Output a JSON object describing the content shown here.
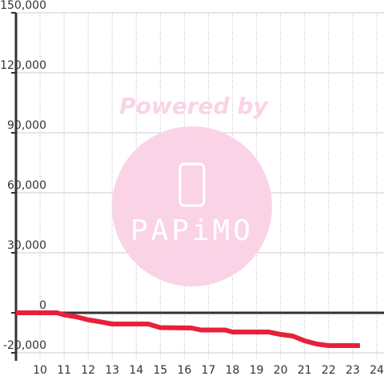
{
  "chart_data": {
    "type": "line",
    "annotations": [
      "Powered by",
      "PAPiMO"
    ],
    "x": [
      9.0,
      10.7,
      11.0,
      11.5,
      12.0,
      12.5,
      13.0,
      14.5,
      15.0,
      16.3,
      16.7,
      17.7,
      18.0,
      19.5,
      20.0,
      20.5,
      21.0,
      21.5,
      22.0,
      23.3
    ],
    "values": [
      0,
      0,
      -1000,
      -2000,
      -3500,
      -4500,
      -5600,
      -5600,
      -7400,
      -7600,
      -8600,
      -8600,
      -9600,
      -9600,
      -10800,
      -11600,
      -14000,
      -15600,
      -16400,
      -16400
    ],
    "color": "#e8203a",
    "xlim": [
      9,
      24.3
    ],
    "xticks": [
      10,
      11,
      12,
      13,
      14,
      15,
      16,
      17,
      18,
      19,
      20,
      21,
      22,
      23,
      24
    ],
    "ylim": [
      -24000,
      150000
    ],
    "yticks": [
      {
        "value": -20000,
        "label": "-20,000"
      },
      0,
      {
        "value": 30000,
        "label": "30,000"
      },
      {
        "value": 60000,
        "label": "60,000"
      },
      {
        "value": 90000,
        "label": "90,000"
      },
      {
        "value": 120000,
        "label": "120,000"
      },
      {
        "value": 150000,
        "label": "150,000"
      }
    ],
    "grid": true
  }
}
